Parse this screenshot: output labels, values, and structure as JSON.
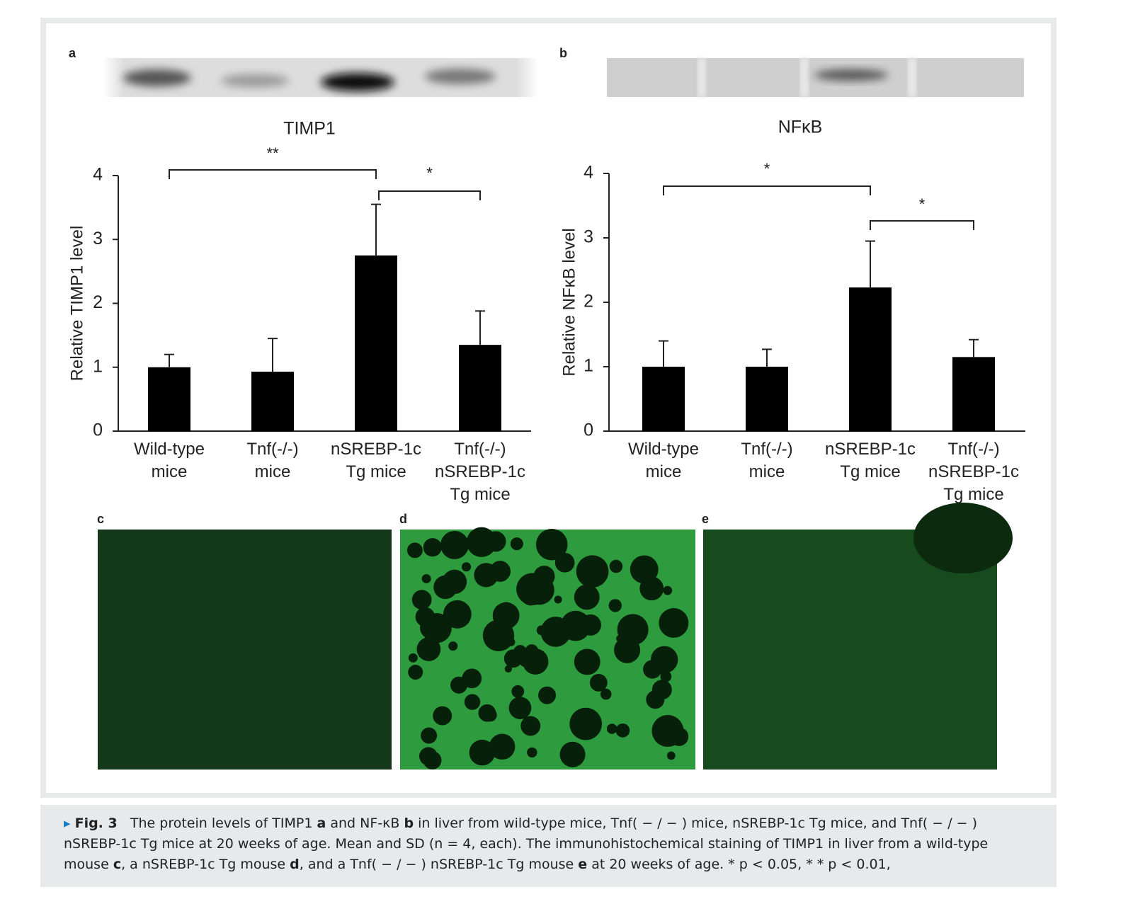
{
  "panels": [
    "a",
    "b",
    "c",
    "d",
    "e"
  ],
  "chart_data": [
    {
      "type": "bar",
      "title": "TIMP1",
      "ylabel": "Relative  TIMP1  level",
      "categories": [
        "Wild-type\nmice",
        "Tnf(-/-)\nmice",
        "nSREBP-1c\nTg mice",
        "Tnf(-/-)\nnSREBP-1c\nTg mice"
      ],
      "values": [
        1.0,
        0.93,
        2.75,
        1.35
      ],
      "errors": [
        0.2,
        0.52,
        0.8,
        0.53
      ],
      "color": "#000000",
      "ylim": [
        0,
        4
      ],
      "yticks": [
        0,
        1,
        2,
        3,
        4
      ],
      "annotations": [
        {
          "text": "**",
          "from": 0,
          "to": 2
        },
        {
          "text": "*",
          "from": 2,
          "to": 3
        }
      ]
    },
    {
      "type": "bar",
      "title": "NFκB",
      "ylabel": "Relative  NFκB level",
      "categories": [
        "Wild-type\nmice",
        "Tnf(-/-)\nmice",
        "nSREBP-1c\nTg mice",
        "Tnf(-/-)\nnSREBP-1c\nTg mice"
      ],
      "values": [
        1.0,
        1.0,
        2.23,
        1.15
      ],
      "errors": [
        0.4,
        0.27,
        0.72,
        0.27
      ],
      "color": "#000000",
      "ylim": [
        0,
        4
      ],
      "yticks": [
        0,
        1,
        2,
        3,
        4
      ],
      "annotations": [
        {
          "text": "*",
          "from": 0,
          "to": 2
        },
        {
          "text": "*",
          "from": 2,
          "to": 3
        }
      ]
    }
  ],
  "caption": {
    "label": "Fig. 3",
    "segments": [
      "The protein levels of TIMP1 ",
      "a",
      " and NF-κB ",
      "b",
      " in liver from wild-type mice, Tnf( − / − ) mice, nSREBP-1c Tg mice, and Tnf( − / − ) nSREBP-1c Tg mice at 20 weeks of age. Mean and SD (n = 4, each). The immunohistochemical staining of TIMP1 in liver from a wild-type mouse ",
      "c",
      ", a nSREBP-1c Tg mouse ",
      "d",
      ", and a Tnf( − / − ) nSREBP-1c Tg mouse ",
      "e",
      " at 20 weeks of age.  * p < 0.05,  * * p < 0.01,"
    ]
  }
}
